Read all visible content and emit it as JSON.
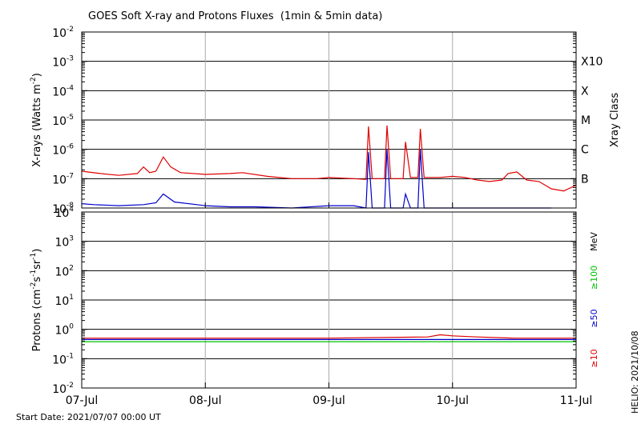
{
  "chart_data": [
    {
      "type": "line",
      "title": "GOES Soft X-ray and Protons Fluxes  (1min & 5min data)",
      "ylabel": "X-rays (Watts m-2)",
      "ylabel_right": "Xray Class",
      "y_scale": "log",
      "ylim": [
        1e-08,
        0.01
      ],
      "y_ticks": [
        {
          "base": "10",
          "exp": "-8"
        },
        {
          "base": "10",
          "exp": "-7"
        },
        {
          "base": "10",
          "exp": "-6"
        },
        {
          "base": "10",
          "exp": "-5"
        },
        {
          "base": "10",
          "exp": "-4"
        },
        {
          "base": "10",
          "exp": "-3"
        },
        {
          "base": "10",
          "exp": "-2"
        }
      ],
      "class_labels": [
        {
          "label": "B",
          "value": 1e-07
        },
        {
          "label": "C",
          "value": 1e-06
        },
        {
          "label": "M",
          "value": 1e-05
        },
        {
          "label": "X",
          "value": 0.0001
        },
        {
          "label": "X10",
          "value": 0.001
        }
      ],
      "grid": true,
      "series": [
        {
          "color": "#e00000",
          "points": [
            [
              0,
              1.8e-07
            ],
            [
              0.15,
              1.5e-07
            ],
            [
              0.3,
              1.3e-07
            ],
            [
              0.45,
              1.5e-07
            ],
            [
              0.5,
              2.5e-07
            ],
            [
              0.55,
              1.6e-07
            ],
            [
              0.6,
              1.8e-07
            ],
            [
              0.66,
              5.5e-07
            ],
            [
              0.72,
              2.5e-07
            ],
            [
              0.8,
              1.6e-07
            ],
            [
              1.0,
              1.4e-07
            ],
            [
              1.2,
              1.5e-07
            ],
            [
              1.3,
              1.6e-07
            ],
            [
              1.5,
              1.2e-07
            ],
            [
              1.7,
              1e-07
            ],
            [
              1.9,
              1e-07
            ],
            [
              2.0,
              1.1e-07
            ],
            [
              2.2,
              1e-07
            ],
            [
              2.3,
              9.5e-08
            ],
            [
              2.32,
              6e-06
            ],
            [
              2.35,
              1e-07
            ],
            [
              2.45,
              1e-07
            ],
            [
              2.47,
              6.5e-06
            ],
            [
              2.5,
              1e-07
            ],
            [
              2.6,
              1e-07
            ],
            [
              2.62,
              1.8e-06
            ],
            [
              2.66,
              1.1e-07
            ],
            [
              2.72,
              1.1e-07
            ],
            [
              2.74,
              5e-06
            ],
            [
              2.77,
              1.1e-07
            ],
            [
              2.85,
              1.1e-07
            ],
            [
              2.9,
              1.1e-07
            ],
            [
              3.0,
              1.2e-07
            ],
            [
              3.1,
              1.1e-07
            ],
            [
              3.2,
              9e-08
            ],
            [
              3.3,
              8e-08
            ],
            [
              3.4,
              9e-08
            ],
            [
              3.45,
              1.5e-07
            ],
            [
              3.52,
              1.7e-07
            ],
            [
              3.6,
              9e-08
            ],
            [
              3.7,
              8e-08
            ],
            [
              3.8,
              4.5e-08
            ],
            [
              3.9,
              3.8e-08
            ],
            [
              4.0,
              6e-08
            ]
          ]
        },
        {
          "color": "#0000cc",
          "points": [
            [
              0,
              1.4e-08
            ],
            [
              0.1,
              1.3e-08
            ],
            [
              0.3,
              1.2e-08
            ],
            [
              0.5,
              1.3e-08
            ],
            [
              0.6,
              1.5e-08
            ],
            [
              0.66,
              3e-08
            ],
            [
              0.75,
              1.6e-08
            ],
            [
              1.0,
              1.2e-08
            ],
            [
              1.2,
              1.1e-08
            ],
            [
              1.4,
              1.1e-08
            ],
            [
              1.7,
              1e-08
            ],
            [
              2.0,
              1.2e-08
            ],
            [
              2.2,
              1.2e-08
            ],
            [
              2.3,
              1e-08
            ],
            [
              2.32,
              8e-07
            ],
            [
              2.35,
              1e-08
            ],
            [
              2.45,
              1e-08
            ],
            [
              2.47,
              1e-06
            ],
            [
              2.5,
              1e-08
            ],
            [
              2.6,
              1e-08
            ],
            [
              2.62,
              3e-08
            ],
            [
              2.66,
              1e-08
            ],
            [
              2.72,
              1e-08
            ],
            [
              2.74,
              1e-06
            ],
            [
              2.77,
              1e-08
            ],
            [
              2.9,
              1e-08
            ],
            [
              3.0,
              1e-08
            ],
            [
              3.3,
              1e-08
            ],
            [
              3.6,
              1e-08
            ],
            [
              3.8,
              1e-08
            ]
          ]
        }
      ]
    },
    {
      "type": "line",
      "ylabel": "Protons (cm-2s-1sr-1)",
      "ylabel_right": "MeV",
      "y_scale": "log",
      "ylim": [
        0.01,
        10000
      ],
      "y_ticks": [
        {
          "base": "10",
          "exp": "-2"
        },
        {
          "base": "10",
          "exp": "-1"
        },
        {
          "base": "10",
          "exp": "0"
        },
        {
          "base": "10",
          "exp": "1"
        },
        {
          "base": "10",
          "exp": "2"
        },
        {
          "base": "10",
          "exp": "3"
        },
        {
          "base": "10",
          "exp": "4"
        }
      ],
      "threshold": 10,
      "grid": true,
      "series": [
        {
          "name": "≥10",
          "color": "#e00000",
          "points": [
            [
              0,
              0.5
            ],
            [
              1,
              0.5
            ],
            [
              2,
              0.5
            ],
            [
              2.8,
              0.55
            ],
            [
              2.9,
              0.65
            ],
            [
              3.0,
              0.6
            ],
            [
              3.2,
              0.55
            ],
            [
              3.5,
              0.5
            ],
            [
              4.0,
              0.5
            ]
          ]
        },
        {
          "name": "≥50",
          "color": "#0000cc",
          "points": [
            [
              0,
              0.45
            ],
            [
              1,
              0.45
            ],
            [
              2,
              0.45
            ],
            [
              3,
              0.45
            ],
            [
              4,
              0.45
            ]
          ]
        },
        {
          "name": "≥100",
          "color": "#00c000",
          "points": [
            [
              0,
              0.38
            ],
            [
              1,
              0.38
            ],
            [
              2,
              0.38
            ],
            [
              3,
              0.38
            ],
            [
              4,
              0.38
            ]
          ]
        }
      ]
    }
  ],
  "x_axis": {
    "range": [
      0,
      4
    ],
    "ticks": [
      {
        "label": "07-Jul",
        "value": 0
      },
      {
        "label": "08-Jul",
        "value": 1
      },
      {
        "label": "09-Jul",
        "value": 2
      },
      {
        "label": "10-Jul",
        "value": 3
      },
      {
        "label": "11-Jul",
        "value": 4
      }
    ]
  },
  "footer": {
    "start_date": "Start Date: 2021/07/07 00:00 UT",
    "credit": "HELIO: 2021/10/08"
  }
}
